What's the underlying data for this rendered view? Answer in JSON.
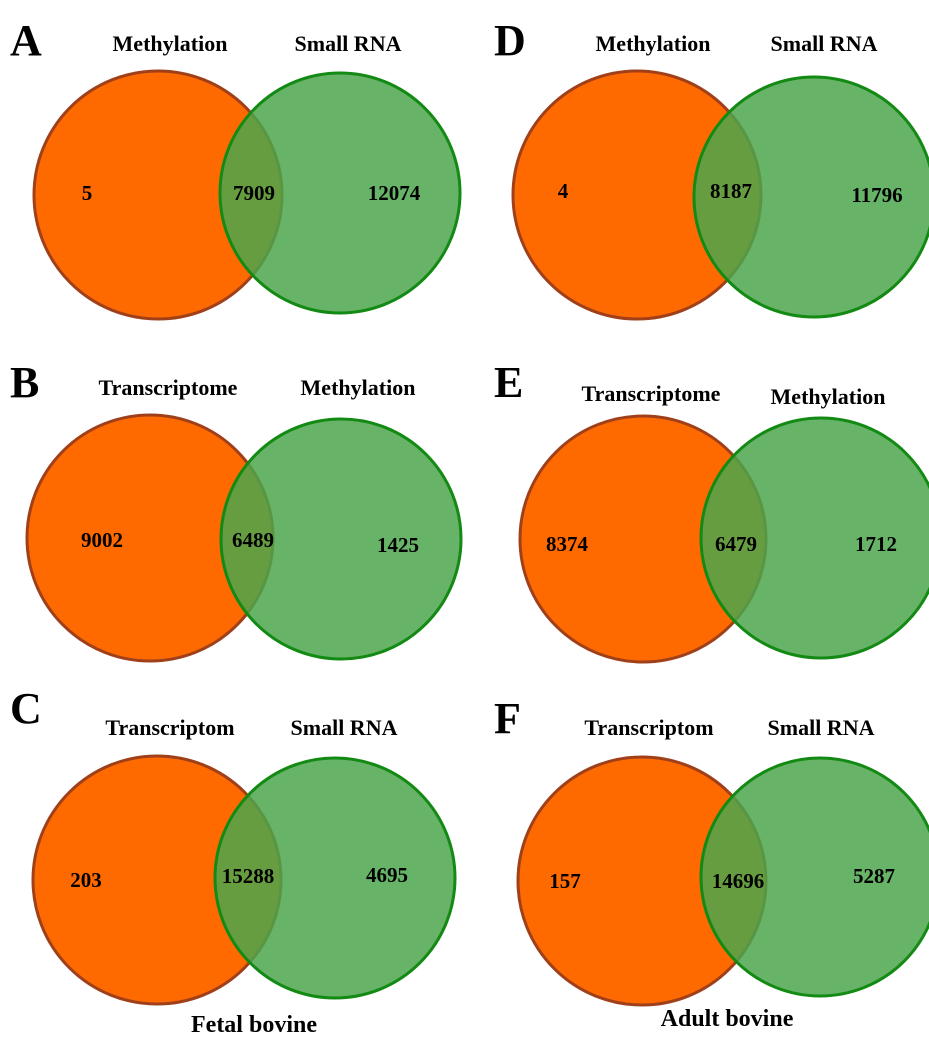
{
  "colors": {
    "left_fill": "#ff6a00",
    "left_stroke": "#a0401a",
    "right_fill": "#4ca64c",
    "right_fill_opacity": 0.85,
    "right_stroke": "#138a13",
    "text": "#000000"
  },
  "panels": [
    {
      "letter": "A",
      "left_label": "Methylation",
      "right_label": "Small RNA",
      "left_only": "5",
      "overlap": "7909",
      "right_only": "12074"
    },
    {
      "letter": "B",
      "left_label": "Transcriptome",
      "right_label": "Methylation",
      "left_only": "9002",
      "overlap": "6489",
      "right_only": "1425"
    },
    {
      "letter": "C",
      "left_label": "Transcriptom",
      "right_label": "Small RNA",
      "left_only": "203",
      "overlap": "15288",
      "right_only": "4695"
    },
    {
      "letter": "D",
      "left_label": "Methylation",
      "right_label": "Small RNA",
      "left_only": "4",
      "overlap": "8187",
      "right_only": "11796"
    },
    {
      "letter": "E",
      "left_label": "Transcriptome",
      "right_label": "Methylation",
      "left_only": "8374",
      "overlap": "6479",
      "right_only": "1712"
    },
    {
      "letter": "F",
      "left_label": "Transcriptom",
      "right_label": "Small RNA",
      "left_only": "157",
      "overlap": "14696",
      "right_only": "5287"
    }
  ],
  "captions": {
    "left_column": "Fetal bovine",
    "right_column": "Adult bovine"
  }
}
